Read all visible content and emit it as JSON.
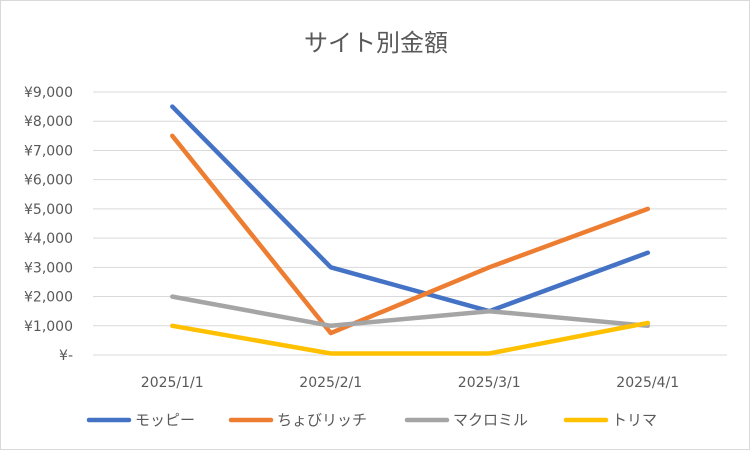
{
  "chart_data": {
    "type": "line",
    "title": "サイト別金額",
    "xlabel": "",
    "ylabel": "",
    "categories": [
      "2025/1/1",
      "2025/2/1",
      "2025/3/1",
      "2025/4/1"
    ],
    "ylim": [
      0,
      9000
    ],
    "yticks": [
      0,
      1000,
      2000,
      3000,
      4000,
      5000,
      6000,
      7000,
      8000,
      9000
    ],
    "ytick_labels": [
      "¥-",
      "¥1,000",
      "¥2,000",
      "¥3,000",
      "¥4,000",
      "¥5,000",
      "¥6,000",
      "¥7,000",
      "¥8,000",
      "¥9,000"
    ],
    "grid": true,
    "legend_position": "bottom",
    "series": [
      {
        "name": "モッピー",
        "color": "#4472C4",
        "values": [
          8500,
          3000,
          1500,
          3500
        ]
      },
      {
        "name": "ちょびリッチ",
        "color": "#ED7D31",
        "values": [
          7500,
          750,
          3000,
          5000
        ]
      },
      {
        "name": "マクロミル",
        "color": "#A5A5A5",
        "values": [
          2000,
          1000,
          1500,
          1000
        ]
      },
      {
        "name": "トリマ",
        "color": "#FFC000",
        "values": [
          1000,
          50,
          50,
          1100
        ]
      }
    ]
  }
}
